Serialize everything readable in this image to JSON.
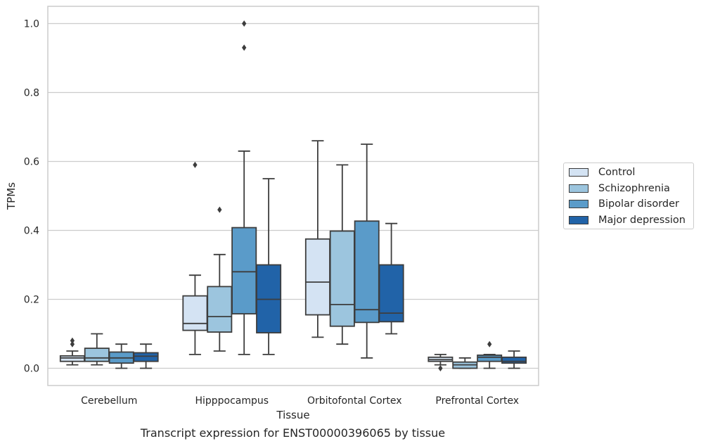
{
  "chart_data": {
    "type": "box",
    "title": "",
    "caption": "Transcript expression for ENST00000396065 by tissue",
    "xlabel": "Tissue",
    "ylabel": "TPMs",
    "ylim": [
      -0.05,
      1.05
    ],
    "yticks": [
      "0.0",
      "0.2",
      "0.4",
      "0.6",
      "0.8",
      "1.0"
    ],
    "grid": true,
    "legend_position": "right",
    "categories": [
      "Cerebellum",
      "Hipppocampus",
      "Orbitofontal Cortex",
      "Prefrontal Cortex"
    ],
    "series": [
      {
        "name": "Control",
        "color": "#d4e3f3",
        "boxes": [
          {
            "whislo": 0.01,
            "q1": 0.02,
            "med": 0.03,
            "q3": 0.036,
            "whishi": 0.05,
            "fliers": [
              0.07,
              0.08
            ]
          },
          {
            "whislo": 0.04,
            "q1": 0.11,
            "med": 0.13,
            "q3": 0.21,
            "whishi": 0.27,
            "fliers": [
              0.59
            ]
          },
          {
            "whislo": 0.09,
            "q1": 0.155,
            "med": 0.25,
            "q3": 0.375,
            "whishi": 0.66,
            "fliers": []
          },
          {
            "whislo": 0.01,
            "q1": 0.02,
            "med": 0.025,
            "q3": 0.032,
            "whishi": 0.04,
            "fliers": [
              0.0
            ]
          }
        ]
      },
      {
        "name": "Schizophrenia",
        "color": "#9cc5de",
        "boxes": [
          {
            "whislo": 0.01,
            "q1": 0.02,
            "med": 0.03,
            "q3": 0.058,
            "whishi": 0.1,
            "fliers": []
          },
          {
            "whislo": 0.05,
            "q1": 0.105,
            "med": 0.15,
            "q3": 0.237,
            "whishi": 0.33,
            "fliers": [
              0.46
            ]
          },
          {
            "whislo": 0.07,
            "q1": 0.122,
            "med": 0.185,
            "q3": 0.398,
            "whishi": 0.59,
            "fliers": []
          },
          {
            "whislo": 0.0,
            "q1": 0.0,
            "med": 0.01,
            "q3": 0.018,
            "whishi": 0.03,
            "fliers": []
          }
        ]
      },
      {
        "name": "Bipolar disorder",
        "color": "#5a9bc9",
        "boxes": [
          {
            "whislo": 0.0,
            "q1": 0.015,
            "med": 0.03,
            "q3": 0.047,
            "whishi": 0.07,
            "fliers": []
          },
          {
            "whislo": 0.04,
            "q1": 0.158,
            "med": 0.28,
            "q3": 0.408,
            "whishi": 0.63,
            "fliers": [
              0.93,
              1.0
            ]
          },
          {
            "whislo": 0.03,
            "q1": 0.133,
            "med": 0.17,
            "q3": 0.427,
            "whishi": 0.65,
            "fliers": []
          },
          {
            "whislo": 0.0,
            "q1": 0.02,
            "med": 0.032,
            "q3": 0.038,
            "whishi": 0.04,
            "fliers": [
              0.07
            ]
          }
        ]
      },
      {
        "name": "Major depression",
        "color": "#2163a8",
        "boxes": [
          {
            "whislo": 0.0,
            "q1": 0.02,
            "med": 0.035,
            "q3": 0.045,
            "whishi": 0.07,
            "fliers": []
          },
          {
            "whislo": 0.04,
            "q1": 0.103,
            "med": 0.2,
            "q3": 0.3,
            "whishi": 0.55,
            "fliers": []
          },
          {
            "whislo": 0.1,
            "q1": 0.135,
            "med": 0.16,
            "q3": 0.3,
            "whishi": 0.42,
            "fliers": []
          },
          {
            "whislo": 0.0,
            "q1": 0.015,
            "med": 0.02,
            "q3": 0.032,
            "whishi": 0.05,
            "fliers": []
          }
        ]
      }
    ]
  }
}
